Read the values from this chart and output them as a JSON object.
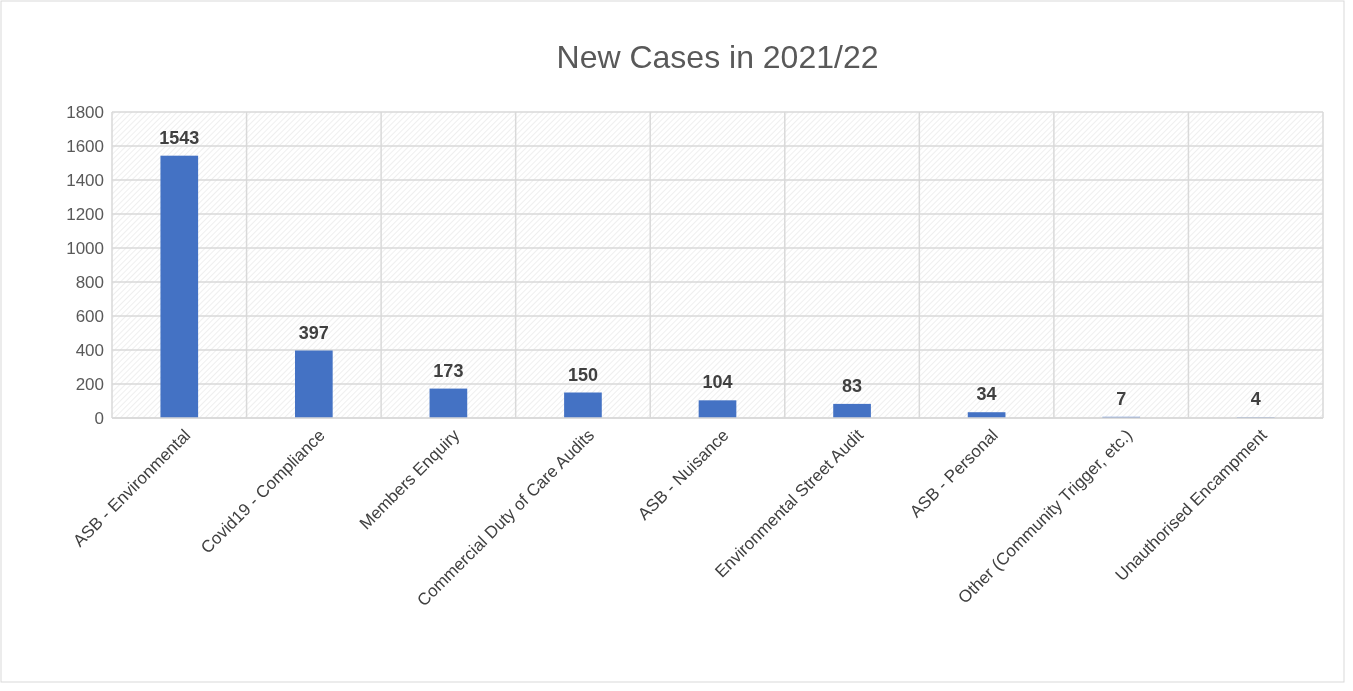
{
  "chart_data": {
    "type": "bar",
    "title": "New Cases in 2021/22",
    "categories": [
      "ASB - Environmental",
      "Covid19 - Compliance",
      "Members Enquiry",
      "Commercial Duty of Care Audits",
      "ASB - Nuisance",
      "Environmental Street Audit",
      "ASB - Personal",
      "Other (Community Trigger, etc.)",
      "Unauthorised Encampment"
    ],
    "values": [
      1543,
      397,
      173,
      150,
      104,
      83,
      34,
      7,
      4
    ],
    "color": "#4472c4",
    "ylim": [
      0,
      1800
    ],
    "yticks": [
      0,
      200,
      400,
      600,
      800,
      1000,
      1200,
      1400,
      1600,
      1800
    ],
    "grid": true,
    "data_labels": true
  }
}
